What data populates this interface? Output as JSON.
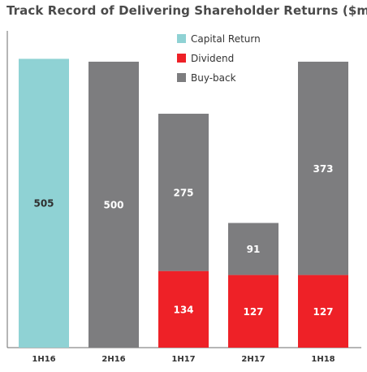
{
  "chart_data": {
    "type": "bar",
    "stacked": true,
    "title": "Track Record of Delivering Shareholder Returns ($m)",
    "categories": [
      "1H16",
      "2H16",
      "1H17",
      "2H17",
      "1H18"
    ],
    "series": [
      {
        "name": "Capital Return",
        "values": [
          505,
          0,
          0,
          0,
          0
        ],
        "color": "#8fd2d4",
        "label_color": "#2f2f2f"
      },
      {
        "name": "Dividend",
        "values": [
          0,
          0,
          134,
          127,
          127
        ],
        "color": "#ee2127",
        "label_color": "#ffffff"
      },
      {
        "name": "Buy-back",
        "values": [
          0,
          500,
          275,
          91,
          373
        ],
        "color": "#7d7d7f",
        "label_color": "#ffffff"
      }
    ],
    "legend_order": [
      "Capital Return",
      "Dividend",
      "Buy-back"
    ],
    "legend_position": "top-right",
    "ylim": [
      0,
      512
    ],
    "grid": false,
    "xlabel": "",
    "ylabel": ""
  }
}
